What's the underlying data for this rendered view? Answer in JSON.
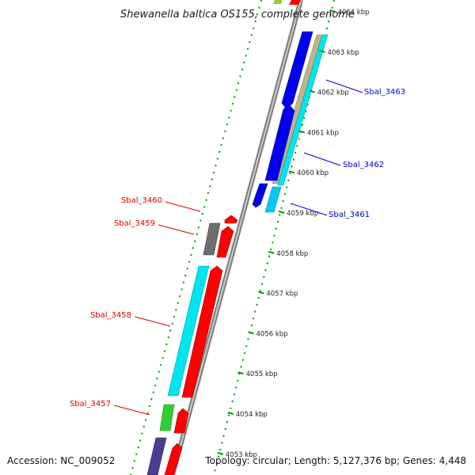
{
  "title": "Shewanella baltica OS155, complete genome",
  "accession": "Accession: NC_009052",
  "topology": "Topology: circular; Length: 5,127,376 bp; Genes: 4,448",
  "ticks": [
    {
      "label": "4064 kbp"
    },
    {
      "label": "4063 kbp"
    },
    {
      "label": "4062 kbp"
    },
    {
      "label": "4061 kbp"
    },
    {
      "label": "4060 kbp"
    },
    {
      "label": "4059 kbp"
    },
    {
      "label": "4058 kbp"
    },
    {
      "label": "4057 kbp"
    },
    {
      "label": "4056 kbp"
    },
    {
      "label": "4055 kbp"
    },
    {
      "label": "4054 kbp"
    },
    {
      "label": "4053 kbp"
    }
  ],
  "genes_forward": [
    {
      "name": "Sbal_3463",
      "color": "#0000cc"
    },
    {
      "name": "Sbal_3462",
      "color": "#0000cc"
    },
    {
      "name": "Sbal_3461",
      "color": "#0000cc"
    }
  ],
  "genes_reverse": [
    {
      "name": "Sbal_3460",
      "color": "#dd0000"
    },
    {
      "name": "Sbal_3459",
      "color": "#dd0000"
    },
    {
      "name": "Sbal_3458",
      "color": "#dd0000"
    },
    {
      "name": "Sbal_3457",
      "color": "#dd0000"
    }
  ],
  "colors": {
    "cds": "#ff0000",
    "cds_blue": "#0000ee",
    "rna_cyan": "#00e5ee",
    "tan": "#bdb48a",
    "gray_feature": "#6e6e6e",
    "green_feature": "#33cc33",
    "purple_feature": "#4b3d8f",
    "backbone": "#8c8c8c",
    "tick_green": "#009900"
  }
}
